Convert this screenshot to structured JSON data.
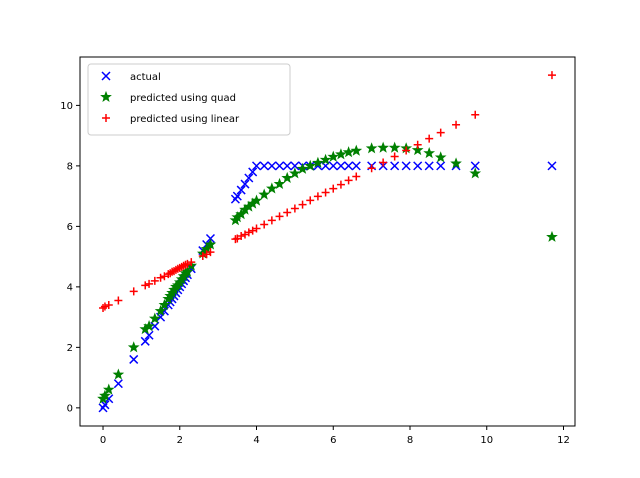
{
  "chart_data": {
    "type": "scatter",
    "title": "",
    "xlabel": "",
    "ylabel": "",
    "xlim": [
      -0.6,
      12.3
    ],
    "ylim": [
      -0.6,
      11.6
    ],
    "xticks": [
      0,
      2,
      4,
      6,
      8,
      10,
      12
    ],
    "yticks": [
      0,
      2,
      4,
      6,
      8,
      10
    ],
    "grid": false,
    "legend": {
      "placement": "top-left"
    },
    "series": [
      {
        "name": "actual",
        "marker": "x",
        "color": "#0000ff",
        "points": [
          [
            0.0,
            0.0
          ],
          [
            0.05,
            0.1
          ],
          [
            0.15,
            0.3
          ],
          [
            0.4,
            0.8
          ],
          [
            0.8,
            1.6
          ],
          [
            1.1,
            2.2
          ],
          [
            1.2,
            2.4
          ],
          [
            1.35,
            2.7
          ],
          [
            1.5,
            3.0
          ],
          [
            1.6,
            3.2
          ],
          [
            1.7,
            3.4
          ],
          [
            1.75,
            3.5
          ],
          [
            1.8,
            3.6
          ],
          [
            1.85,
            3.7
          ],
          [
            1.9,
            3.8
          ],
          [
            1.95,
            3.9
          ],
          [
            2.0,
            4.0
          ],
          [
            2.05,
            4.1
          ],
          [
            2.1,
            4.2
          ],
          [
            2.15,
            4.3
          ],
          [
            2.2,
            4.4
          ],
          [
            2.3,
            4.6
          ],
          [
            2.6,
            5.2
          ],
          [
            2.7,
            5.4
          ],
          [
            2.8,
            5.6
          ],
          [
            3.45,
            6.9
          ],
          [
            3.5,
            7.0
          ],
          [
            3.6,
            7.2
          ],
          [
            3.7,
            7.4
          ],
          [
            3.8,
            7.6
          ],
          [
            3.9,
            7.8
          ],
          [
            4.0,
            8.0
          ],
          [
            4.2,
            8.0
          ],
          [
            4.4,
            8.0
          ],
          [
            4.6,
            8.0
          ],
          [
            4.8,
            8.0
          ],
          [
            5.0,
            8.0
          ],
          [
            5.2,
            8.0
          ],
          [
            5.4,
            8.0
          ],
          [
            5.6,
            8.0
          ],
          [
            5.8,
            8.0
          ],
          [
            6.0,
            8.0
          ],
          [
            6.2,
            8.0
          ],
          [
            6.4,
            8.0
          ],
          [
            6.6,
            8.0
          ],
          [
            7.0,
            8.0
          ],
          [
            7.3,
            8.0
          ],
          [
            7.6,
            8.0
          ],
          [
            7.9,
            8.0
          ],
          [
            8.2,
            8.0
          ],
          [
            8.5,
            8.0
          ],
          [
            8.8,
            8.0
          ],
          [
            9.2,
            8.0
          ],
          [
            9.7,
            8.0
          ],
          [
            11.7,
            8.0
          ]
        ]
      },
      {
        "name": "predicted using quad",
        "marker": "star",
        "color": "#008000",
        "points": [
          [
            0.0,
            0.3
          ],
          [
            0.05,
            0.4
          ],
          [
            0.15,
            0.6
          ],
          [
            0.4,
            1.1
          ],
          [
            0.8,
            2.0
          ],
          [
            1.1,
            2.6
          ],
          [
            1.2,
            2.7
          ],
          [
            1.35,
            2.95
          ],
          [
            1.5,
            3.2
          ],
          [
            1.6,
            3.4
          ],
          [
            1.7,
            3.6
          ],
          [
            1.75,
            3.7
          ],
          [
            1.8,
            3.8
          ],
          [
            1.85,
            3.9
          ],
          [
            1.9,
            4.0
          ],
          [
            1.95,
            4.05
          ],
          [
            2.0,
            4.15
          ],
          [
            2.05,
            4.25
          ],
          [
            2.1,
            4.35
          ],
          [
            2.15,
            4.45
          ],
          [
            2.2,
            4.5
          ],
          [
            2.3,
            4.7
          ],
          [
            2.6,
            5.1
          ],
          [
            2.7,
            5.25
          ],
          [
            2.8,
            5.4
          ],
          [
            3.45,
            6.2
          ],
          [
            3.5,
            6.3
          ],
          [
            3.6,
            6.4
          ],
          [
            3.7,
            6.55
          ],
          [
            3.8,
            6.65
          ],
          [
            3.9,
            6.75
          ],
          [
            4.0,
            6.85
          ],
          [
            4.2,
            7.05
          ],
          [
            4.4,
            7.25
          ],
          [
            4.6,
            7.4
          ],
          [
            4.8,
            7.6
          ],
          [
            5.0,
            7.75
          ],
          [
            5.2,
            7.9
          ],
          [
            5.4,
            8.0
          ],
          [
            5.6,
            8.1
          ],
          [
            5.8,
            8.2
          ],
          [
            6.0,
            8.3
          ],
          [
            6.2,
            8.38
          ],
          [
            6.4,
            8.45
          ],
          [
            6.6,
            8.5
          ],
          [
            7.0,
            8.58
          ],
          [
            7.3,
            8.6
          ],
          [
            7.6,
            8.6
          ],
          [
            7.9,
            8.58
          ],
          [
            8.2,
            8.52
          ],
          [
            8.5,
            8.42
          ],
          [
            8.8,
            8.28
          ],
          [
            9.2,
            8.08
          ],
          [
            9.7,
            7.75
          ],
          [
            11.7,
            5.65
          ]
        ]
      },
      {
        "name": "predicted using linear",
        "marker": "plus",
        "color": "#ff0000",
        "points": [
          [
            0.0,
            3.3
          ],
          [
            0.05,
            3.35
          ],
          [
            0.15,
            3.4
          ],
          [
            0.4,
            3.55
          ],
          [
            0.8,
            3.85
          ],
          [
            1.1,
            4.05
          ],
          [
            1.2,
            4.1
          ],
          [
            1.35,
            4.2
          ],
          [
            1.5,
            4.3
          ],
          [
            1.6,
            4.35
          ],
          [
            1.7,
            4.42
          ],
          [
            1.75,
            4.45
          ],
          [
            1.8,
            4.5
          ],
          [
            1.85,
            4.52
          ],
          [
            1.9,
            4.56
          ],
          [
            1.95,
            4.6
          ],
          [
            2.0,
            4.63
          ],
          [
            2.05,
            4.66
          ],
          [
            2.1,
            4.7
          ],
          [
            2.15,
            4.73
          ],
          [
            2.2,
            4.76
          ],
          [
            2.3,
            4.82
          ],
          [
            2.6,
            5.02
          ],
          [
            2.7,
            5.08
          ],
          [
            2.8,
            5.15
          ],
          [
            3.45,
            5.58
          ],
          [
            3.5,
            5.6
          ],
          [
            3.6,
            5.68
          ],
          [
            3.7,
            5.73
          ],
          [
            3.8,
            5.8
          ],
          [
            3.9,
            5.86
          ],
          [
            4.0,
            5.93
          ],
          [
            4.2,
            6.06
          ],
          [
            4.4,
            6.2
          ],
          [
            4.6,
            6.33
          ],
          [
            4.8,
            6.46
          ],
          [
            5.0,
            6.59
          ],
          [
            5.2,
            6.72
          ],
          [
            5.4,
            6.86
          ],
          [
            5.6,
            6.99
          ],
          [
            5.8,
            7.12
          ],
          [
            6.0,
            7.25
          ],
          [
            6.2,
            7.38
          ],
          [
            6.4,
            7.52
          ],
          [
            6.6,
            7.65
          ],
          [
            7.0,
            7.92
          ],
          [
            7.3,
            8.11
          ],
          [
            7.6,
            8.31
          ],
          [
            7.9,
            8.51
          ],
          [
            8.2,
            8.7
          ],
          [
            8.5,
            8.9
          ],
          [
            8.8,
            9.1
          ],
          [
            9.2,
            9.36
          ],
          [
            9.7,
            9.69
          ],
          [
            11.7,
            11.0
          ]
        ]
      }
    ]
  }
}
